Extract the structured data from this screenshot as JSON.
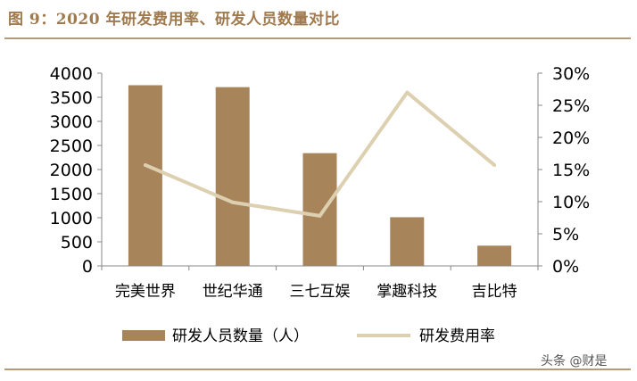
{
  "title": "图 9：2020 年研发费用率、研发人员数量对比",
  "watermark": "头条 @财是",
  "colors": {
    "bar": "#a8845a",
    "line": "#ddd0b0",
    "title": "#a07a4f",
    "rule": "#b59a78"
  },
  "chart_data": {
    "type": "bar",
    "categories": [
      "完美世界",
      "世纪华通",
      "三七互娱",
      "掌趣科技",
      "吉比特"
    ],
    "series": [
      {
        "name": "研发人员数量（人）",
        "type": "bar",
        "axis": "left",
        "values": [
          3750,
          3710,
          2340,
          1010,
          420
        ]
      },
      {
        "name": "研发费用率",
        "type": "line",
        "axis": "right",
        "values": [
          15.7,
          9.9,
          7.8,
          27.0,
          15.7
        ]
      }
    ],
    "y_left": {
      "ylim": [
        0,
        4000
      ],
      "ticks": [
        "0",
        "500",
        "1000",
        "1500",
        "2000",
        "2500",
        "3000",
        "3500",
        "4000"
      ]
    },
    "y_right": {
      "ylim": [
        0,
        30
      ],
      "ticks": [
        "0%",
        "5%",
        "10%",
        "15%",
        "20%",
        "25%",
        "30%"
      ]
    },
    "grid": false,
    "legend_position": "bottom"
  }
}
